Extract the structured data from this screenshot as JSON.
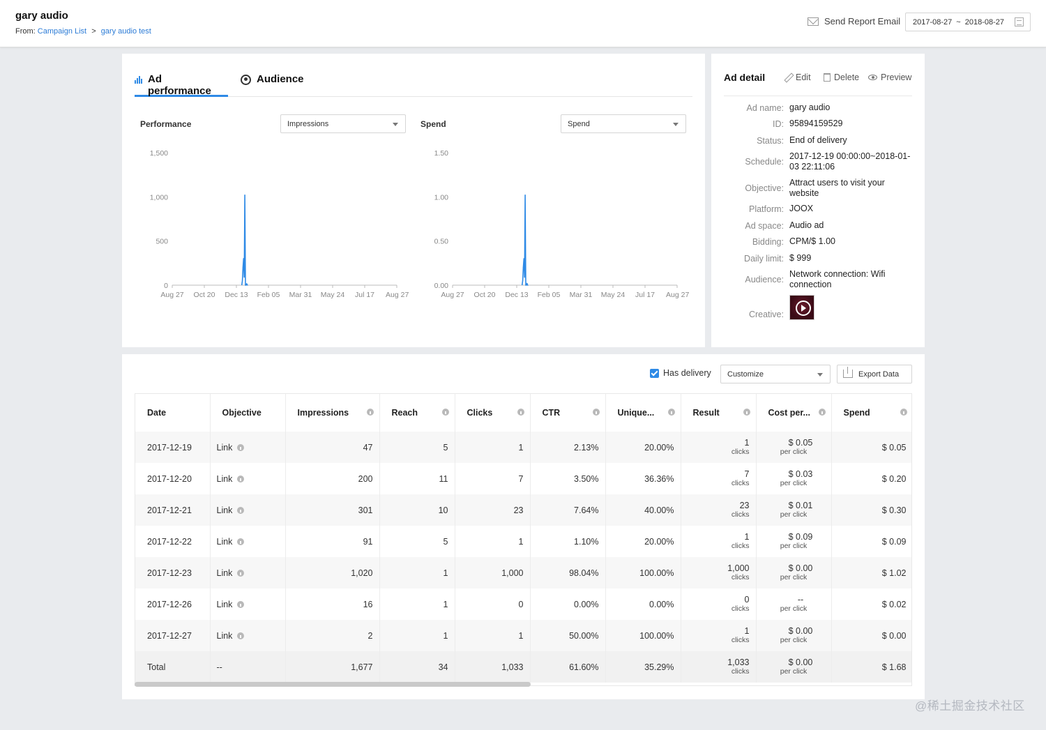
{
  "header": {
    "title": "gary audio",
    "from_label": "From:",
    "breadcrumb": [
      "Campaign List",
      "gary audio test"
    ],
    "send_report": "Send Report Email",
    "date_start": "2017-08-27",
    "date_sep": "~",
    "date_end": "2018-08-27"
  },
  "tabs": [
    {
      "label": "Ad performance",
      "icon": "bar-chart-icon",
      "active": true
    },
    {
      "label": "Audience",
      "icon": "audience-icon",
      "active": false
    }
  ],
  "accent_color": "#2e8ae6",
  "chart_data": [
    {
      "type": "line",
      "title": "Performance",
      "metric_select": "Impressions",
      "x_ticks": [
        "Aug 27",
        "Oct 20",
        "Dec 13",
        "Feb 05",
        "Mar 31",
        "May 24",
        "Jul 17",
        "Aug 27"
      ],
      "y_ticks": [
        "0",
        "500",
        "1,000",
        "1,500"
      ],
      "ylim": [
        0,
        1500
      ],
      "xlim": [
        "2017-08-27",
        "2018-08-27"
      ],
      "series": [
        {
          "x": [
            "2017-12-19",
            "2017-12-20",
            "2017-12-21",
            "2017-12-22",
            "2017-12-23",
            "2017-12-24",
            "2017-12-25",
            "2017-12-26",
            "2017-12-27"
          ],
          "y": [
            47,
            200,
            301,
            91,
            1020,
            0,
            0,
            16,
            2
          ]
        }
      ]
    },
    {
      "type": "line",
      "title": "Spend",
      "metric_select": "Spend",
      "x_ticks": [
        "Aug 27",
        "Oct 20",
        "Dec 13",
        "Feb 05",
        "Mar 31",
        "May 24",
        "Jul 17",
        "Aug 27"
      ],
      "y_ticks": [
        "0.00",
        "0.50",
        "1.00",
        "1.50"
      ],
      "ylim": [
        0,
        1.5
      ],
      "xlim": [
        "2017-08-27",
        "2018-08-27"
      ],
      "series": [
        {
          "x": [
            "2017-12-19",
            "2017-12-20",
            "2017-12-21",
            "2017-12-22",
            "2017-12-23",
            "2017-12-24",
            "2017-12-25",
            "2017-12-26",
            "2017-12-27"
          ],
          "y": [
            0.05,
            0.2,
            0.3,
            0.09,
            1.02,
            0,
            0,
            0.02,
            0.0
          ]
        }
      ]
    }
  ],
  "ad_detail": {
    "title": "Ad detail",
    "actions": [
      "Edit",
      "Delete",
      "Preview"
    ],
    "fields": [
      {
        "key": "Ad name:",
        "value": "gary audio"
      },
      {
        "key": "ID:",
        "value": "95894159529"
      },
      {
        "key": "Status:",
        "value": "End of delivery"
      },
      {
        "key": "Schedule:",
        "value": "2017-12-19 00:00:00~2018-01-03 22:11:06"
      },
      {
        "key": "Objective:",
        "value": "Attract users to visit your website"
      },
      {
        "key": "Platform:",
        "value": "JOOX"
      },
      {
        "key": "Ad space:",
        "value": "Audio ad"
      },
      {
        "key": "Bidding:",
        "value": "CPM/$ 1.00"
      },
      {
        "key": "Daily limit:",
        "value": "$ 999"
      },
      {
        "key": "Audience:",
        "value": "Network connection: Wifi connection"
      }
    ],
    "creative_label": "Creative:"
  },
  "table_toolbar": {
    "has_delivery": "Has delivery",
    "customize": "Customize",
    "export": "Export Data"
  },
  "table": {
    "columns": [
      "Date",
      "Objective",
      "Impressions",
      "Reach",
      "Clicks",
      "CTR",
      "Unique...",
      "Result",
      "Cost per...",
      "Spend"
    ],
    "rows": [
      {
        "date": "2017-12-19",
        "objective": "Link",
        "impressions": "47",
        "reach": "5",
        "clicks": "1",
        "ctr": "2.13%",
        "unique": "20.00%",
        "result": "1",
        "result_unit": "clicks",
        "cost": "$ 0.05",
        "cost_unit": "per click",
        "spend": "$ 0.05"
      },
      {
        "date": "2017-12-20",
        "objective": "Link",
        "impressions": "200",
        "reach": "11",
        "clicks": "7",
        "ctr": "3.50%",
        "unique": "36.36%",
        "result": "7",
        "result_unit": "clicks",
        "cost": "$ 0.03",
        "cost_unit": "per click",
        "spend": "$ 0.20"
      },
      {
        "date": "2017-12-21",
        "objective": "Link",
        "impressions": "301",
        "reach": "10",
        "clicks": "23",
        "ctr": "7.64%",
        "unique": "40.00%",
        "result": "23",
        "result_unit": "clicks",
        "cost": "$ 0.01",
        "cost_unit": "per click",
        "spend": "$ 0.30"
      },
      {
        "date": "2017-12-22",
        "objective": "Link",
        "impressions": "91",
        "reach": "5",
        "clicks": "1",
        "ctr": "1.10%",
        "unique": "20.00%",
        "result": "1",
        "result_unit": "clicks",
        "cost": "$ 0.09",
        "cost_unit": "per click",
        "spend": "$ 0.09"
      },
      {
        "date": "2017-12-23",
        "objective": "Link",
        "impressions": "1,020",
        "reach": "1",
        "clicks": "1,000",
        "ctr": "98.04%",
        "unique": "100.00%",
        "result": "1,000",
        "result_unit": "clicks",
        "cost": "$ 0.00",
        "cost_unit": "per click",
        "spend": "$ 1.02"
      },
      {
        "date": "2017-12-26",
        "objective": "Link",
        "impressions": "16",
        "reach": "1",
        "clicks": "0",
        "ctr": "0.00%",
        "unique": "0.00%",
        "result": "0",
        "result_unit": "clicks",
        "cost": "--",
        "cost_unit": "per click",
        "spend": "$ 0.02"
      },
      {
        "date": "2017-12-27",
        "objective": "Link",
        "impressions": "2",
        "reach": "1",
        "clicks": "1",
        "ctr": "50.00%",
        "unique": "100.00%",
        "result": "1",
        "result_unit": "clicks",
        "cost": "$ 0.00",
        "cost_unit": "per click",
        "spend": "$ 0.00"
      }
    ],
    "total": {
      "date": "Total",
      "objective": "--",
      "impressions": "1,677",
      "reach": "34",
      "clicks": "1,033",
      "ctr": "61.60%",
      "unique": "35.29%",
      "result": "1,033",
      "result_unit": "clicks",
      "cost": "$ 0.00",
      "cost_unit": "per click",
      "spend": "$ 1.68"
    }
  },
  "watermark": "@稀土掘金技术社区"
}
